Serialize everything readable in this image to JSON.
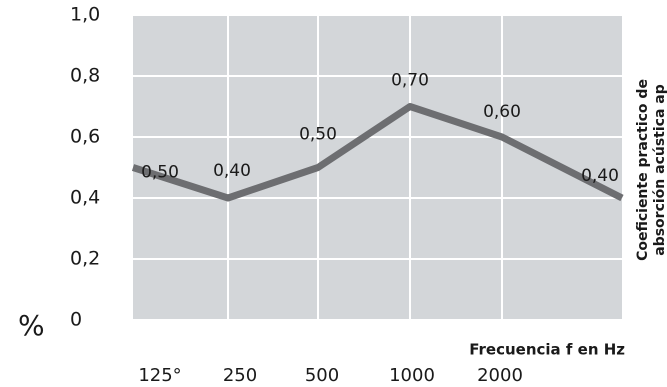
{
  "chart_data": {
    "type": "line",
    "y_unit": "%",
    "x_label": "Frecuencia f en Hz",
    "y_label": [
      "Coeficiente practico de",
      "absorción acústica ap"
    ],
    "categories": [
      "125°",
      "250",
      "500",
      "1000",
      "2000",
      null
    ],
    "series": [
      {
        "name": null,
        "color": "#6d6e71",
        "values": [
          0.5,
          0.4,
          0.5,
          0.7,
          0.6,
          0.4
        ],
        "value_labels": [
          "0,50",
          "0,40",
          "0,50",
          "0,70",
          "0,60",
          "0,40"
        ]
      }
    ],
    "ylim": [
      0,
      1
    ],
    "yticks": [
      0,
      {
        "value": 0.2,
        "label": "0,2"
      },
      {
        "value": 0.4,
        "label": "0,4"
      },
      {
        "value": 0.6,
        "label": "0,6"
      },
      {
        "value": 0.8,
        "label": "0,8"
      },
      {
        "value": 1,
        "label": "1,0"
      }
    ],
    "grid": true,
    "plot_background": "#d3d6d9"
  }
}
